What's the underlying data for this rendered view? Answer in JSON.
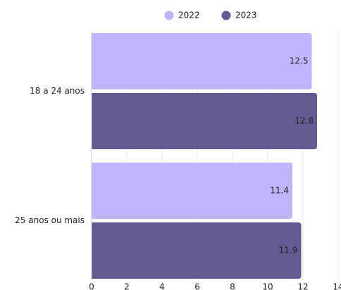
{
  "chart_data": {
    "type": "bar",
    "orientation": "horizontal",
    "categories": [
      "18 a 24 anos",
      "25 anos ou mais"
    ],
    "series": [
      {
        "name": "2022",
        "color": "#c0b4fc",
        "values": [
          12.5,
          11.4
        ]
      },
      {
        "name": "2023",
        "color": "#625a91",
        "values": [
          12.8,
          11.9
        ]
      }
    ],
    "xlim": [
      0,
      14
    ],
    "xticks": [
      0,
      2,
      4,
      6,
      8,
      10,
      12,
      14
    ],
    "grid": true,
    "legend": "top"
  }
}
